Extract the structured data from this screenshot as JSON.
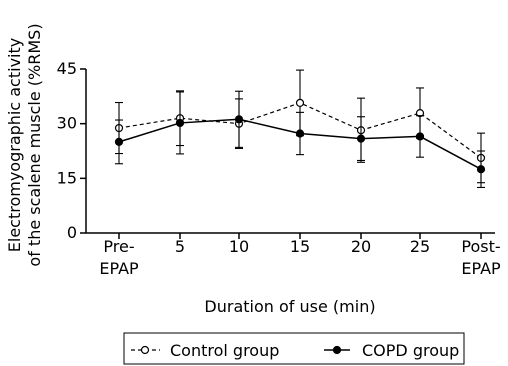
{
  "chart_data": {
    "type": "line",
    "categories": [
      "Pre-\nEPAP",
      "5",
      "10",
      "15",
      "20",
      "25",
      "Post-\nEPAP"
    ],
    "ylabel_line1": "Electromyographic activity",
    "ylabel_line2": "of the scalene muscle (%RMS)",
    "xlabel": "Duration of use (min)",
    "ylim": [
      0,
      45
    ],
    "yticks": [
      0,
      15,
      30,
      45
    ],
    "series": [
      {
        "name": "Control group",
        "style": "dashed-open-circle",
        "values": [
          28.8,
          31.5,
          30.0,
          35.7,
          28.2,
          32.9,
          20.6
        ],
        "error": [
          7.0,
          7.5,
          6.8,
          9.0,
          8.8,
          6.9,
          6.8
        ]
      },
      {
        "name": "COPD group",
        "style": "solid-filled-circle",
        "values": [
          25.0,
          30.2,
          31.2,
          27.3,
          25.9,
          26.5,
          17.5
        ],
        "error": [
          6.0,
          8.5,
          7.7,
          5.8,
          6.0,
          5.7,
          5.0
        ]
      }
    ],
    "legend_position": "bottom"
  }
}
